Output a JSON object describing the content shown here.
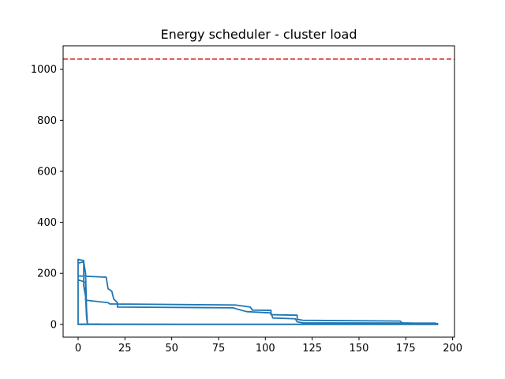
{
  "chart_data": {
    "type": "line",
    "title": "Energy scheduler - cluster load",
    "xlabel": "",
    "ylabel": "",
    "xlim": [
      -8,
      201
    ],
    "ylim": [
      -50,
      1092
    ],
    "xticks": [
      0,
      25,
      50,
      75,
      100,
      125,
      150,
      175,
      200
    ],
    "yticks": [
      0,
      200,
      400,
      600,
      800,
      1000
    ],
    "grid": false,
    "legend": "none",
    "colors": {
      "series": "#1f77b4",
      "threshold": "#d62728",
      "axes": "#000000"
    },
    "threshold": {
      "y": 1040,
      "style": "dashed"
    },
    "series": [
      {
        "points": [
          [
            0,
            0
          ],
          [
            0,
            80
          ],
          [
            0,
            255
          ],
          [
            3,
            250
          ],
          [
            3,
            150
          ],
          [
            4,
            110
          ],
          [
            4.5,
            30
          ],
          [
            5,
            0
          ],
          [
            5,
            0
          ],
          [
            0,
            0
          ],
          [
            0,
            190
          ],
          [
            15,
            185
          ],
          [
            16,
            140
          ],
          [
            18,
            130
          ],
          [
            19,
            100
          ],
          [
            21,
            85
          ],
          [
            21,
            80
          ],
          [
            84,
            76
          ],
          [
            85,
            75
          ],
          [
            92,
            68
          ],
          [
            93,
            56
          ],
          [
            103,
            55
          ],
          [
            103,
            38
          ],
          [
            117,
            36
          ],
          [
            117,
            20
          ],
          [
            120,
            16
          ],
          [
            172,
            13
          ],
          [
            173,
            6
          ],
          [
            192,
            3
          ],
          [
            192,
            0
          ],
          [
            0,
            0
          ],
          [
            0,
            175
          ],
          [
            4,
            165
          ],
          [
            4,
            95
          ],
          [
            16,
            85
          ],
          [
            17,
            80
          ],
          [
            21,
            80
          ],
          [
            21,
            68
          ],
          [
            83,
            65
          ],
          [
            84,
            62
          ],
          [
            90,
            50
          ],
          [
            103,
            45
          ],
          [
            104,
            25
          ],
          [
            116,
            22
          ],
          [
            117,
            10
          ],
          [
            120,
            6
          ],
          [
            191,
            5
          ],
          [
            191,
            1
          ],
          [
            0,
            0
          ],
          [
            0,
            1
          ],
          [
            133,
            0
          ],
          [
            0,
            0
          ],
          [
            0,
            240
          ],
          [
            3,
            245
          ],
          [
            4,
            200
          ],
          [
            4.5,
            60
          ],
          [
            5,
            0
          ]
        ]
      }
    ]
  }
}
